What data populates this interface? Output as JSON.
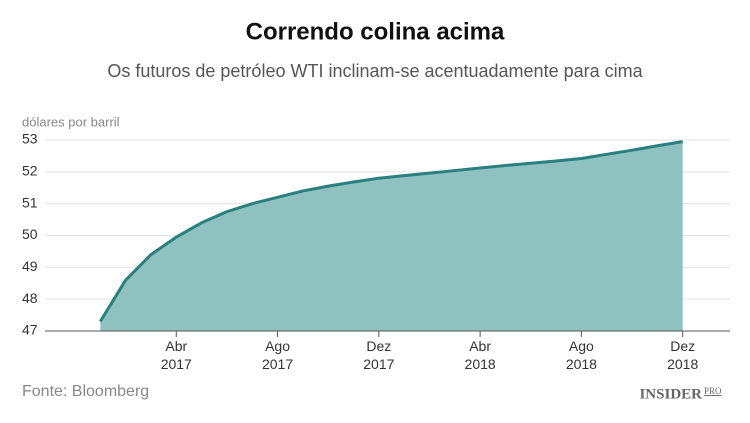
{
  "chart_data": {
    "type": "area",
    "title": "Correndo colina acima",
    "subtitle": "Os futuros de petróleo WTI inclinam-se acentuadamente para cima",
    "y_label": "dólares por barril",
    "source": "Fonte: Bloomberg",
    "logo": {
      "name": "INSIDER",
      "suffix": "PRO"
    },
    "x": [
      "2017-01",
      "2017-02",
      "2017-03",
      "2017-04",
      "2017-05",
      "2017-06",
      "2017-07",
      "2017-08",
      "2017-09",
      "2017-10",
      "2017-11",
      "2017-12",
      "2018-01",
      "2018-02",
      "2018-03",
      "2018-04",
      "2018-05",
      "2018-06",
      "2018-07",
      "2018-08",
      "2018-09",
      "2018-10",
      "2018-11",
      "2018-12"
    ],
    "series": [
      {
        "name": "WTI",
        "color": "#2a7f7f",
        "fill": "#8fc1c1",
        "values": [
          47.3,
          48.6,
          49.4,
          49.95,
          50.4,
          50.75,
          51.0,
          51.2,
          51.4,
          51.55,
          51.68,
          51.8,
          51.88,
          51.96,
          52.04,
          52.12,
          52.2,
          52.27,
          52.34,
          52.42,
          52.55,
          52.68,
          52.82,
          52.95
        ]
      }
    ],
    "ylim": [
      47,
      53
    ],
    "yticks": [
      47,
      48,
      49,
      50,
      51,
      52,
      53
    ],
    "xlim": [
      "2016-12",
      "2019-01"
    ],
    "xticks": [
      {
        "value": "2017-04",
        "label": "Abr 2017"
      },
      {
        "value": "2017-08",
        "label": "Ago 2017"
      },
      {
        "value": "2017-12",
        "label": "Dez 2017"
      },
      {
        "value": "2018-04",
        "label": "Abr 2018"
      },
      {
        "value": "2018-08",
        "label": "Ago 2018"
      },
      {
        "value": "2018-12",
        "label": "Dez 2018"
      }
    ],
    "grid": true
  }
}
